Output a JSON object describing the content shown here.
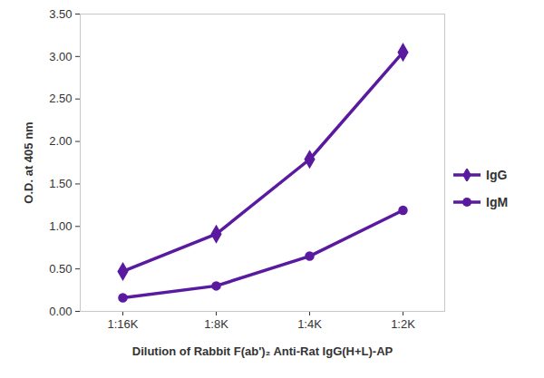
{
  "chart_data": {
    "type": "line",
    "x_label": "Dilution of Rabbit F(ab')₂ Anti-Rat IgG(H+L)-AP",
    "y_label": "O.D. at 405 nm",
    "categories": [
      "1:16K",
      "1:8K",
      "1:4K",
      "1:2K"
    ],
    "series": [
      {
        "name": "IgG",
        "color": "#5a1aa0",
        "marker": "diamond",
        "line_style": "solid",
        "values": [
          0.47,
          0.91,
          1.79,
          3.05
        ]
      },
      {
        "name": "IgM",
        "color": "#5a1aa0",
        "marker": "circle",
        "line_style": "solid",
        "values": [
          0.16,
          0.3,
          0.65,
          1.19
        ]
      }
    ],
    "ylim": [
      0,
      3.5
    ],
    "yticks": [
      {
        "value": 0,
        "label": "0.00"
      },
      {
        "value": 0.5,
        "label": "0.50"
      },
      {
        "value": 1,
        "label": "1.00"
      },
      {
        "value": 1.5,
        "label": "1.50"
      },
      {
        "value": 2,
        "label": "2.00"
      },
      {
        "value": 2.5,
        "label": "2.50"
      },
      {
        "value": 3,
        "label": "3.00"
      },
      {
        "value": 3.5,
        "label": "3.50"
      }
    ],
    "grid": false,
    "legend": "right"
  }
}
